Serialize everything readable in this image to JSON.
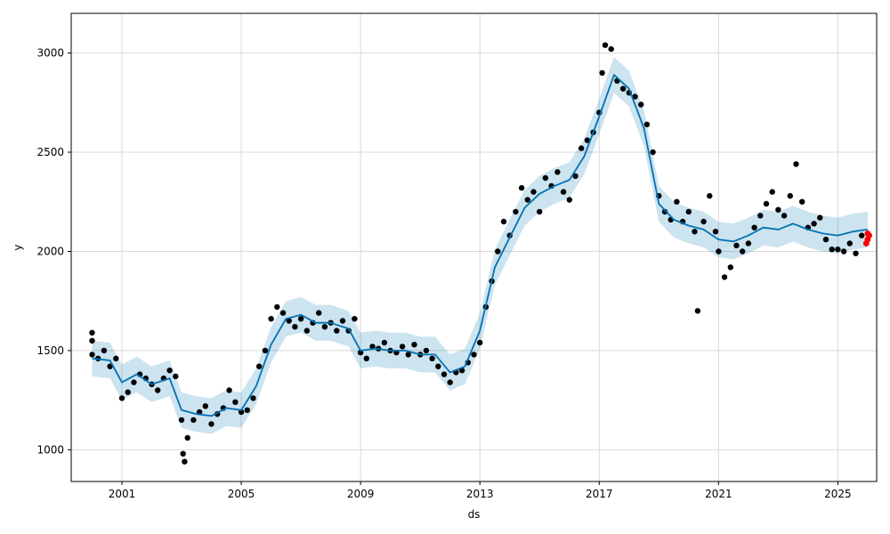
{
  "chart_data": {
    "type": "scatter",
    "xlabel": "ds",
    "ylabel": "y",
    "xlim": [
      1999.3,
      2026.3
    ],
    "ylim": [
      840,
      3200
    ],
    "x_ticks": [
      2001,
      2005,
      2009,
      2013,
      2017,
      2021,
      2025
    ],
    "x_tick_labels": [
      "2001",
      "2005",
      "2009",
      "2013",
      "2017",
      "2021",
      "2025"
    ],
    "y_ticks": [
      1000,
      1500,
      2000,
      2500,
      3000
    ],
    "y_tick_labels": [
      "1000",
      "1500",
      "2000",
      "2500",
      "3000"
    ],
    "grid": true,
    "colors": {
      "observed": "#000000",
      "forecast_line": "#0072B2",
      "uncertainty_band": "#0072B2",
      "highlight": "#ff0000"
    },
    "series": [
      {
        "kind": "forecast_trend",
        "points": [
          [
            2000.0,
            1460
          ],
          [
            2000.6,
            1450
          ],
          [
            2001.0,
            1340
          ],
          [
            2001.5,
            1380
          ],
          [
            2002.0,
            1330
          ],
          [
            2002.6,
            1360
          ],
          [
            2003.0,
            1200
          ],
          [
            2003.5,
            1180
          ],
          [
            2004.0,
            1170
          ],
          [
            2004.5,
            1210
          ],
          [
            2005.0,
            1200
          ],
          [
            2005.5,
            1320
          ],
          [
            2006.0,
            1530
          ],
          [
            2006.5,
            1660
          ],
          [
            2007.0,
            1680
          ],
          [
            2007.5,
            1640
          ],
          [
            2008.0,
            1640
          ],
          [
            2008.6,
            1610
          ],
          [
            2009.0,
            1500
          ],
          [
            2009.5,
            1510
          ],
          [
            2010.0,
            1500
          ],
          [
            2010.5,
            1500
          ],
          [
            2011.0,
            1480
          ],
          [
            2011.5,
            1480
          ],
          [
            2012.0,
            1390
          ],
          [
            2012.5,
            1420
          ],
          [
            2013.0,
            1600
          ],
          [
            2013.5,
            1920
          ],
          [
            2014.0,
            2070
          ],
          [
            2014.5,
            2220
          ],
          [
            2015.0,
            2290
          ],
          [
            2015.5,
            2330
          ],
          [
            2016.0,
            2360
          ],
          [
            2016.5,
            2480
          ],
          [
            2017.0,
            2680
          ],
          [
            2017.5,
            2890
          ],
          [
            2018.0,
            2820
          ],
          [
            2018.5,
            2620
          ],
          [
            2019.0,
            2240
          ],
          [
            2019.5,
            2160
          ],
          [
            2020.0,
            2130
          ],
          [
            2020.5,
            2110
          ],
          [
            2021.0,
            2060
          ],
          [
            2021.5,
            2050
          ],
          [
            2022.0,
            2080
          ],
          [
            2022.5,
            2120
          ],
          [
            2023.0,
            2110
          ],
          [
            2023.5,
            2140
          ],
          [
            2024.0,
            2110
          ],
          [
            2024.5,
            2090
          ],
          [
            2025.0,
            2080
          ],
          [
            2025.5,
            2100
          ],
          [
            2026.0,
            2110
          ]
        ]
      },
      {
        "kind": "observed",
        "points": [
          [
            2000.0,
            1480
          ],
          [
            2000.0,
            1550
          ],
          [
            2000.0,
            1590
          ],
          [
            2000.2,
            1460
          ],
          [
            2000.4,
            1500
          ],
          [
            2000.6,
            1420
          ],
          [
            2000.8,
            1460
          ],
          [
            2001.0,
            1260
          ],
          [
            2001.2,
            1290
          ],
          [
            2001.4,
            1340
          ],
          [
            2001.6,
            1380
          ],
          [
            2001.8,
            1360
          ],
          [
            2002.0,
            1330
          ],
          [
            2002.2,
            1300
          ],
          [
            2002.4,
            1360
          ],
          [
            2002.6,
            1400
          ],
          [
            2002.8,
            1370
          ],
          [
            2003.0,
            1150
          ],
          [
            2003.05,
            980
          ],
          [
            2003.1,
            940
          ],
          [
            2003.2,
            1060
          ],
          [
            2003.4,
            1150
          ],
          [
            2003.6,
            1190
          ],
          [
            2003.8,
            1220
          ],
          [
            2004.0,
            1130
          ],
          [
            2004.2,
            1180
          ],
          [
            2004.4,
            1210
          ],
          [
            2004.6,
            1300
          ],
          [
            2004.8,
            1240
          ],
          [
            2005.0,
            1190
          ],
          [
            2005.2,
            1200
          ],
          [
            2005.4,
            1260
          ],
          [
            2005.6,
            1420
          ],
          [
            2005.8,
            1500
          ],
          [
            2006.0,
            1660
          ],
          [
            2006.2,
            1720
          ],
          [
            2006.4,
            1690
          ],
          [
            2006.6,
            1650
          ],
          [
            2006.8,
            1620
          ],
          [
            2007.0,
            1660
          ],
          [
            2007.2,
            1600
          ],
          [
            2007.4,
            1640
          ],
          [
            2007.6,
            1690
          ],
          [
            2007.8,
            1620
          ],
          [
            2008.0,
            1640
          ],
          [
            2008.2,
            1600
          ],
          [
            2008.4,
            1650
          ],
          [
            2008.6,
            1600
          ],
          [
            2008.8,
            1660
          ],
          [
            2009.0,
            1490
          ],
          [
            2009.2,
            1460
          ],
          [
            2009.4,
            1520
          ],
          [
            2009.6,
            1510
          ],
          [
            2009.8,
            1540
          ],
          [
            2010.0,
            1500
          ],
          [
            2010.2,
            1490
          ],
          [
            2010.4,
            1520
          ],
          [
            2010.6,
            1480
          ],
          [
            2010.8,
            1530
          ],
          [
            2011.0,
            1480
          ],
          [
            2011.2,
            1500
          ],
          [
            2011.4,
            1460
          ],
          [
            2011.6,
            1420
          ],
          [
            2011.8,
            1380
          ],
          [
            2012.0,
            1340
          ],
          [
            2012.2,
            1390
          ],
          [
            2012.4,
            1400
          ],
          [
            2012.6,
            1440
          ],
          [
            2012.8,
            1480
          ],
          [
            2013.0,
            1540
          ],
          [
            2013.2,
            1720
          ],
          [
            2013.4,
            1850
          ],
          [
            2013.6,
            2000
          ],
          [
            2013.8,
            2150
          ],
          [
            2014.0,
            2080
          ],
          [
            2014.2,
            2200
          ],
          [
            2014.4,
            2320
          ],
          [
            2014.6,
            2260
          ],
          [
            2014.8,
            2300
          ],
          [
            2015.0,
            2200
          ],
          [
            2015.2,
            2370
          ],
          [
            2015.4,
            2330
          ],
          [
            2015.6,
            2400
          ],
          [
            2015.8,
            2300
          ],
          [
            2016.0,
            2260
          ],
          [
            2016.2,
            2380
          ],
          [
            2016.4,
            2520
          ],
          [
            2016.6,
            2560
          ],
          [
            2016.8,
            2600
          ],
          [
            2017.0,
            2700
          ],
          [
            2017.1,
            2900
          ],
          [
            2017.2,
            3040
          ],
          [
            2017.4,
            3020
          ],
          [
            2017.6,
            2860
          ],
          [
            2017.8,
            2820
          ],
          [
            2018.0,
            2800
          ],
          [
            2018.2,
            2780
          ],
          [
            2018.4,
            2740
          ],
          [
            2018.6,
            2640
          ],
          [
            2018.8,
            2500
          ],
          [
            2019.0,
            2280
          ],
          [
            2019.2,
            2200
          ],
          [
            2019.4,
            2160
          ],
          [
            2019.6,
            2250
          ],
          [
            2019.8,
            2150
          ],
          [
            2020.0,
            2200
          ],
          [
            2020.2,
            2100
          ],
          [
            2020.3,
            1700
          ],
          [
            2020.5,
            2150
          ],
          [
            2020.7,
            2280
          ],
          [
            2020.9,
            2100
          ],
          [
            2021.0,
            2000
          ],
          [
            2021.2,
            1870
          ],
          [
            2021.4,
            1920
          ],
          [
            2021.6,
            2030
          ],
          [
            2021.8,
            2000
          ],
          [
            2022.0,
            2040
          ],
          [
            2022.2,
            2120
          ],
          [
            2022.4,
            2180
          ],
          [
            2022.6,
            2240
          ],
          [
            2022.8,
            2300
          ],
          [
            2023.0,
            2210
          ],
          [
            2023.2,
            2180
          ],
          [
            2023.4,
            2280
          ],
          [
            2023.6,
            2440
          ],
          [
            2023.8,
            2250
          ],
          [
            2024.0,
            2120
          ],
          [
            2024.2,
            2140
          ],
          [
            2024.4,
            2170
          ],
          [
            2024.6,
            2060
          ],
          [
            2024.8,
            2010
          ],
          [
            2025.0,
            2010
          ],
          [
            2025.2,
            2000
          ],
          [
            2025.4,
            2040
          ],
          [
            2025.6,
            1990
          ],
          [
            2025.8,
            2080
          ]
        ]
      },
      {
        "kind": "highlighted",
        "points": [
          [
            2025.95,
            2040
          ],
          [
            2026.0,
            2060
          ],
          [
            2026.0,
            2090
          ],
          [
            2026.05,
            2080
          ]
        ]
      }
    ]
  }
}
